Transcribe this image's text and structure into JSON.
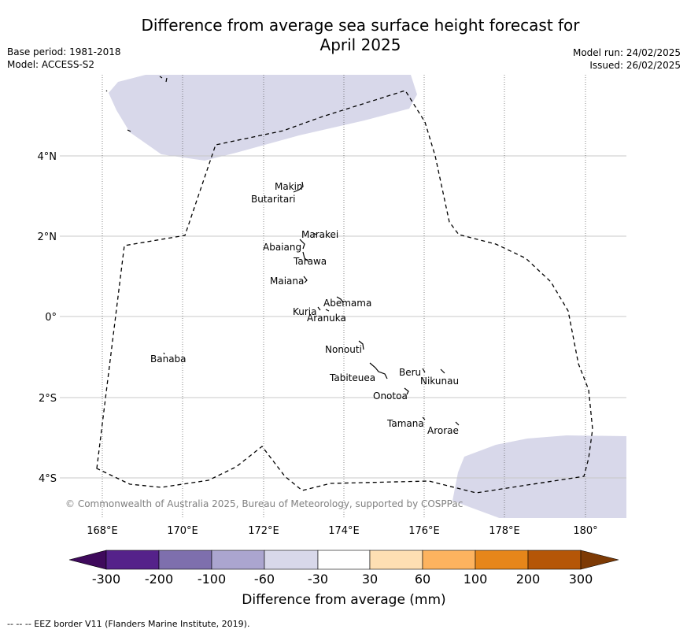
{
  "title_line1": "Difference from average sea surface height forecast for",
  "title_line2": "April 2025",
  "meta_left": {
    "base_period": "Base period: 1981-2018",
    "model": "Model: ACCESS-S2"
  },
  "meta_right": {
    "model_run": "Model run: 24/02/2025",
    "issued": "Issued: 26/02/2025"
  },
  "axes": {
    "lon_ticks": [
      "168°E",
      "170°E",
      "172°E",
      "174°E",
      "176°E",
      "178°E",
      "180°"
    ],
    "lat_ticks": [
      "4°N",
      "2°N",
      "0°",
      "2°S",
      "4°S"
    ]
  },
  "islands": [
    {
      "name": "Makin"
    },
    {
      "name": "Butaritari"
    },
    {
      "name": "Marakei"
    },
    {
      "name": "Abaiang"
    },
    {
      "name": "Tarawa"
    },
    {
      "name": "Maiana"
    },
    {
      "name": "Abemama"
    },
    {
      "name": "Kuria"
    },
    {
      "name": "Aranuka"
    },
    {
      "name": "Nonouti"
    },
    {
      "name": "Banaba"
    },
    {
      "name": "Beru"
    },
    {
      "name": "Nikunau"
    },
    {
      "name": "Tabiteuea"
    },
    {
      "name": "Onotoa"
    },
    {
      "name": "Tamana"
    },
    {
      "name": "Arorae"
    }
  ],
  "copyright": "© Commonwealth of Australia 2025, Bureau of Meteorology, supported by COSPPac",
  "colorbar": {
    "title": "Difference from average (mm)",
    "ticks": [
      "-300",
      "-200",
      "-100",
      "-60",
      "-30",
      "30",
      "60",
      "100",
      "200",
      "300"
    ],
    "colors": [
      "#3f0a5c",
      "#55228a",
      "#7e6fad",
      "#aba5cf",
      "#d8d8ea",
      "#ffffff",
      "#fedfb3",
      "#fdb35f",
      "#e6861a",
      "#b55607",
      "#7d3a05"
    ]
  },
  "footer": "--  --  -- EEZ border V11 (Flanders Marine Institute, 2019)."
}
